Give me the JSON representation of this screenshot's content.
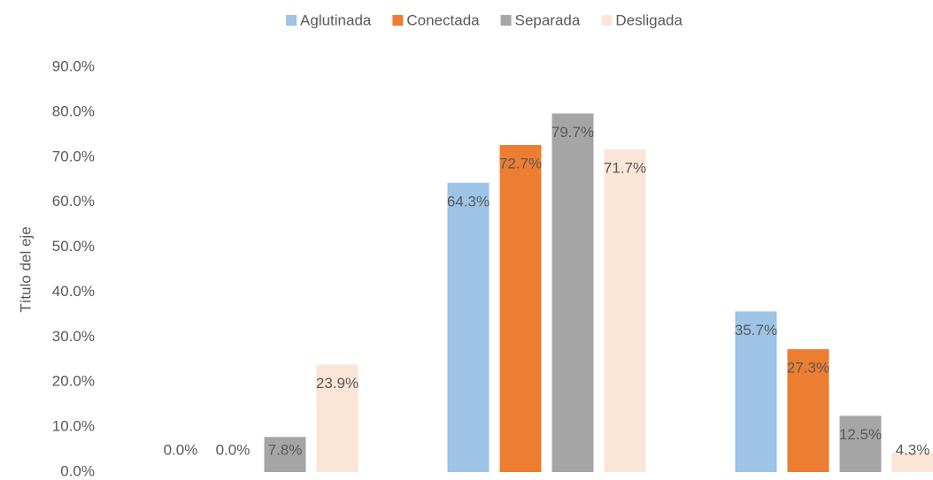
{
  "chart_data": {
    "type": "bar",
    "y_axis_label": "Título del eje",
    "categories": [
      null,
      null,
      null
    ],
    "series": [
      {
        "name": "Aglutinada",
        "color": "#9dc3e6",
        "values": [
          0,
          64.3,
          35.7
        ],
        "value_labels": [
          "0.0%",
          "64.3%",
          "35.7%"
        ]
      },
      {
        "name": "Conectada",
        "color": "#ed7d31",
        "values": [
          0,
          72.7,
          27.3
        ],
        "value_labels": [
          "0.0%",
          "72.7%",
          "27.3%"
        ]
      },
      {
        "name": "Separada",
        "color": "#a5a5a5",
        "values": [
          7.8,
          79.7,
          12.5
        ],
        "value_labels": [
          "7.8%",
          "79.7%",
          "12.5%"
        ]
      },
      {
        "name": "Desligada",
        "color": "#fbe5d6",
        "values": [
          23.9,
          71.7,
          4.3
        ],
        "value_labels": [
          "23.9%",
          "71.7%",
          "4.3%"
        ]
      }
    ],
    "ylim": [
      0,
      90
    ],
    "yticks": [
      {
        "value": 0,
        "label": "0.0%"
      },
      {
        "value": 10,
        "label": "10.0%"
      },
      {
        "value": 20,
        "label": "20.0%"
      },
      {
        "value": 30,
        "label": "30.0%"
      },
      {
        "value": 40,
        "label": "40.0%"
      },
      {
        "value": 50,
        "label": "50.0%"
      },
      {
        "value": 60,
        "label": "60.0%"
      },
      {
        "value": 70,
        "label": "70.0%"
      },
      {
        "value": 80,
        "label": "80.0%"
      },
      {
        "value": 90,
        "label": "90.0%"
      }
    ],
    "grid": false,
    "legend": "top"
  }
}
